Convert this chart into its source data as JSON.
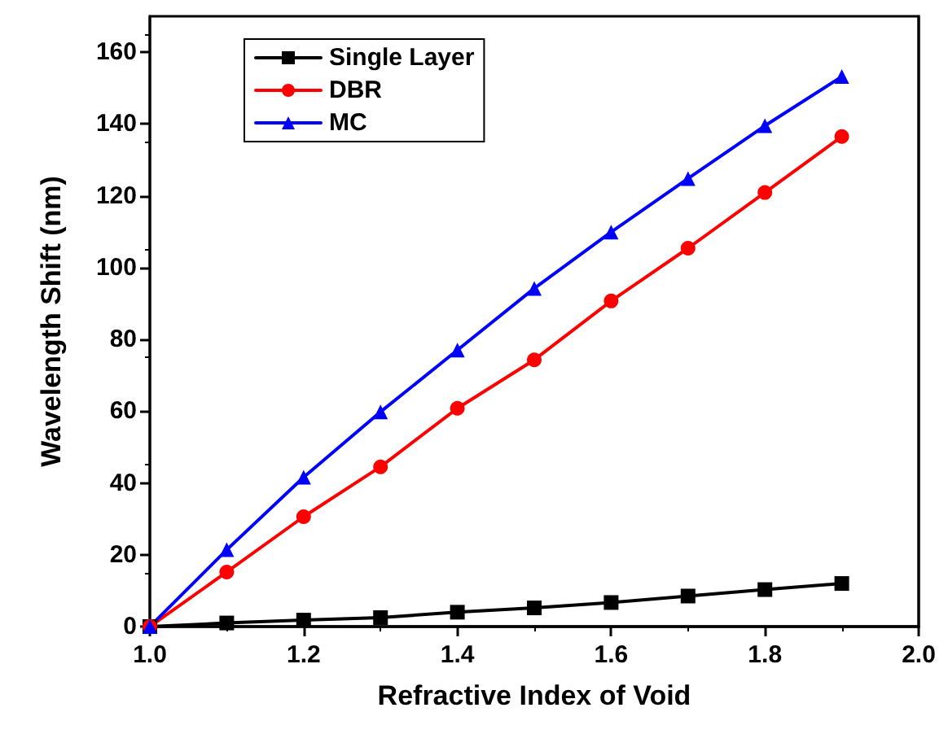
{
  "chart_data": {
    "type": "line",
    "xlabel": "Refractive Index of Void",
    "ylabel": "Wavelength Shift (nm)",
    "x": [
      1.0,
      1.1,
      1.2,
      1.3,
      1.4,
      1.5,
      1.6,
      1.7,
      1.8,
      1.9
    ],
    "series": [
      {
        "name": "Single Layer",
        "color": "#000000",
        "marker": "square",
        "values": [
          0,
          1,
          1.8,
          2.5,
          4,
          5.2,
          6.7,
          8.5,
          10.3,
          12
        ]
      },
      {
        "name": "DBR",
        "color": "#ff0000",
        "marker": "circle",
        "values": [
          0,
          15.2,
          30.6,
          44.5,
          60.8,
          74.3,
          90.7,
          105.4,
          120.9,
          136.5
        ]
      },
      {
        "name": "MC",
        "color": "#0000ff",
        "marker": "triangle",
        "values": [
          0,
          21.4,
          41.6,
          59.8,
          77,
          94.2,
          109.9,
          124.8,
          139.5,
          153.2
        ]
      }
    ],
    "xlim": [
      1.0,
      2.0
    ],
    "xticks": [
      {
        "value": 1,
        "label": "1.0"
      },
      1.2,
      1.4,
      1.6,
      1.8,
      {
        "value": 2,
        "label": "2.0"
      }
    ],
    "ylim": [
      0,
      170
    ],
    "yticks": [
      0,
      20,
      40,
      60,
      80,
      100,
      120,
      140,
      160
    ],
    "grid": false,
    "legend": "top left",
    "line_style": "solid"
  }
}
